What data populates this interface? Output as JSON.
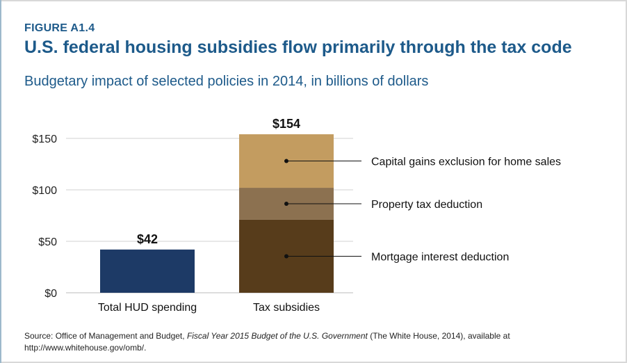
{
  "figure_label": "FIGURE A1.4",
  "title": "U.S. federal housing subsidies flow primarily through the tax code",
  "subtitle": "Budgetary impact of selected policies in 2014, in billions of dollars",
  "source": {
    "prefix": "Source: Office of Management and Budget, ",
    "italic": "Fiscal Year 2015 Budget of the U.S. Government",
    "suffix": " (The White House, 2014), available at http://www.whitehouse.gov/omb/."
  },
  "colors": {
    "text_blue": "#1d5a8a",
    "hud_bar": "#1d3a66",
    "mortgage": "#573c1b",
    "property": "#8c7150",
    "capital_gains": "#c39c60",
    "grid": "#d0d0d0"
  },
  "chart_data": {
    "type": "bar",
    "stacked": true,
    "categories": [
      "Total HUD spending",
      "Tax subsidies"
    ],
    "ylim": [
      0,
      160
    ],
    "yticks": [
      0,
      50,
      100,
      150
    ],
    "ytick_labels": [
      "$0",
      "$50",
      "$100",
      "$150"
    ],
    "grid": true,
    "totals": [
      42,
      154
    ],
    "total_labels": [
      "$42",
      "$154"
    ],
    "series": [
      {
        "name": "Total HUD spending",
        "values": [
          42,
          0
        ],
        "color": "#1d3a66",
        "annotate": false
      },
      {
        "name": "Mortgage interest deduction",
        "values": [
          0,
          71
        ],
        "color": "#573c1b",
        "annotate": true
      },
      {
        "name": "Property tax deduction",
        "values": [
          0,
          31
        ],
        "color": "#8c7150",
        "annotate": true
      },
      {
        "name": "Capital gains exclusion for home sales",
        "values": [
          0,
          52
        ],
        "color": "#c39c60",
        "annotate": true
      }
    ]
  }
}
